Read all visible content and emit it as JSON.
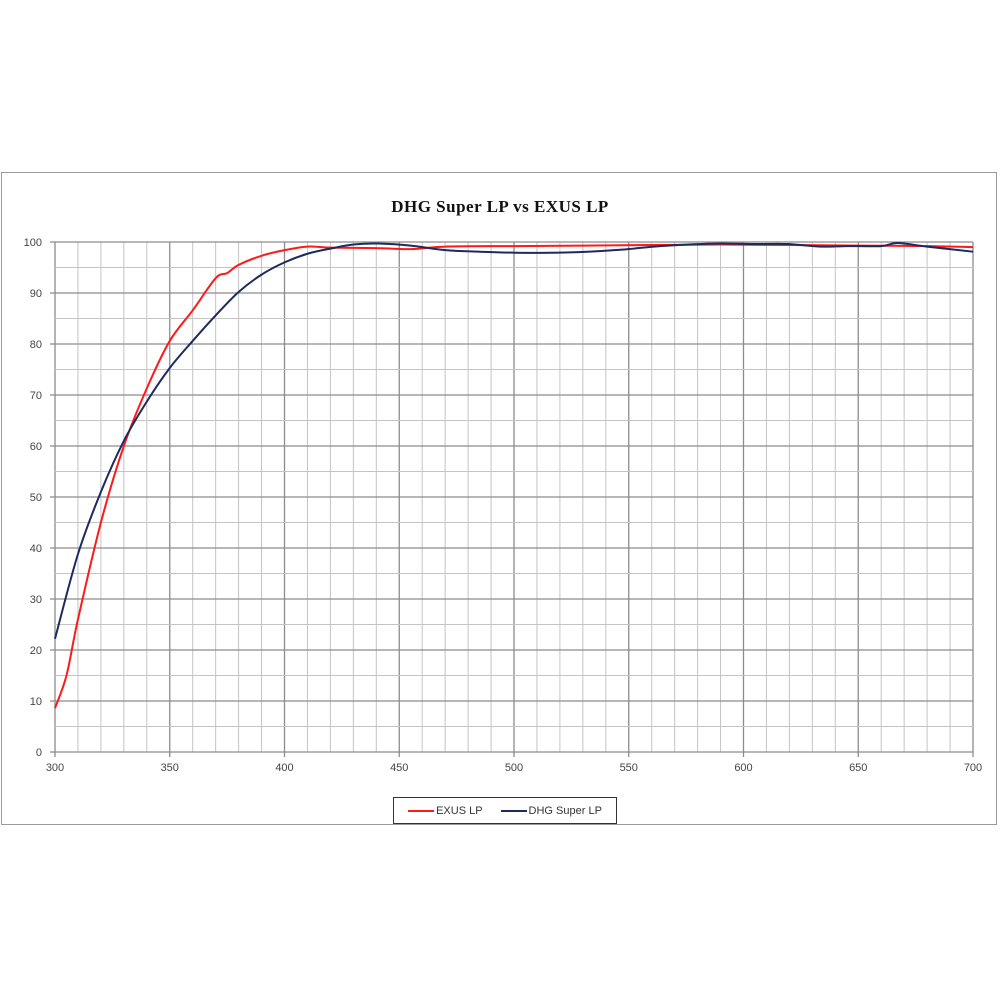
{
  "chart_data": {
    "type": "line",
    "title": "DHG Super LP vs EXUS LP",
    "xlabel": "",
    "ylabel": "",
    "xlim": [
      300,
      700
    ],
    "ylim": [
      0,
      100
    ],
    "x_ticks": [
      "300",
      "350",
      "400",
      "450",
      "500",
      "550",
      "600",
      "650",
      "700"
    ],
    "y_ticks": [
      "0",
      "10",
      "20",
      "30",
      "40",
      "50",
      "60",
      "70",
      "80",
      "90",
      "100"
    ],
    "grid": true,
    "legend_position": "bottom",
    "series": [
      {
        "name": "EXUS LP",
        "color": "#ff1a1a",
        "x": [
          300,
          305,
          310,
          320,
          330,
          340,
          350,
          360,
          370,
          375,
          380,
          390,
          400,
          410,
          420,
          440,
          455,
          470,
          500,
          530,
          560,
          590,
          620,
          650,
          680,
          700
        ],
        "y": [
          8.6,
          15,
          26,
          45,
          60,
          71.3,
          80.6,
          86.6,
          92.9,
          93.9,
          95.5,
          97.3,
          98.4,
          99.1,
          98.9,
          98.8,
          98.6,
          99.1,
          99.2,
          99.3,
          99.4,
          99.5,
          99.4,
          99.3,
          99.2,
          99.0
        ]
      },
      {
        "name": "DHG Super LP",
        "color": "#1c2a5e",
        "x": [
          300,
          310,
          320,
          330,
          340,
          350,
          360,
          370,
          380,
          390,
          400,
          410,
          420,
          430,
          441,
          455,
          470,
          485,
          501,
          516,
          532,
          547,
          561,
          576,
          590,
          605,
          619,
          634,
          645,
          660,
          667,
          680,
          700
        ],
        "y": [
          22.2,
          38.8,
          51,
          61,
          68.7,
          75.3,
          80.6,
          85.6,
          90.2,
          93.6,
          96,
          97.7,
          98.7,
          99.5,
          99.7,
          99.3,
          98.4,
          98.1,
          97.9,
          97.9,
          98.1,
          98.5,
          99.1,
          99.5,
          99.7,
          99.6,
          99.6,
          99.1,
          99.2,
          99.2,
          99.8,
          99.1,
          98.1
        ]
      }
    ]
  }
}
